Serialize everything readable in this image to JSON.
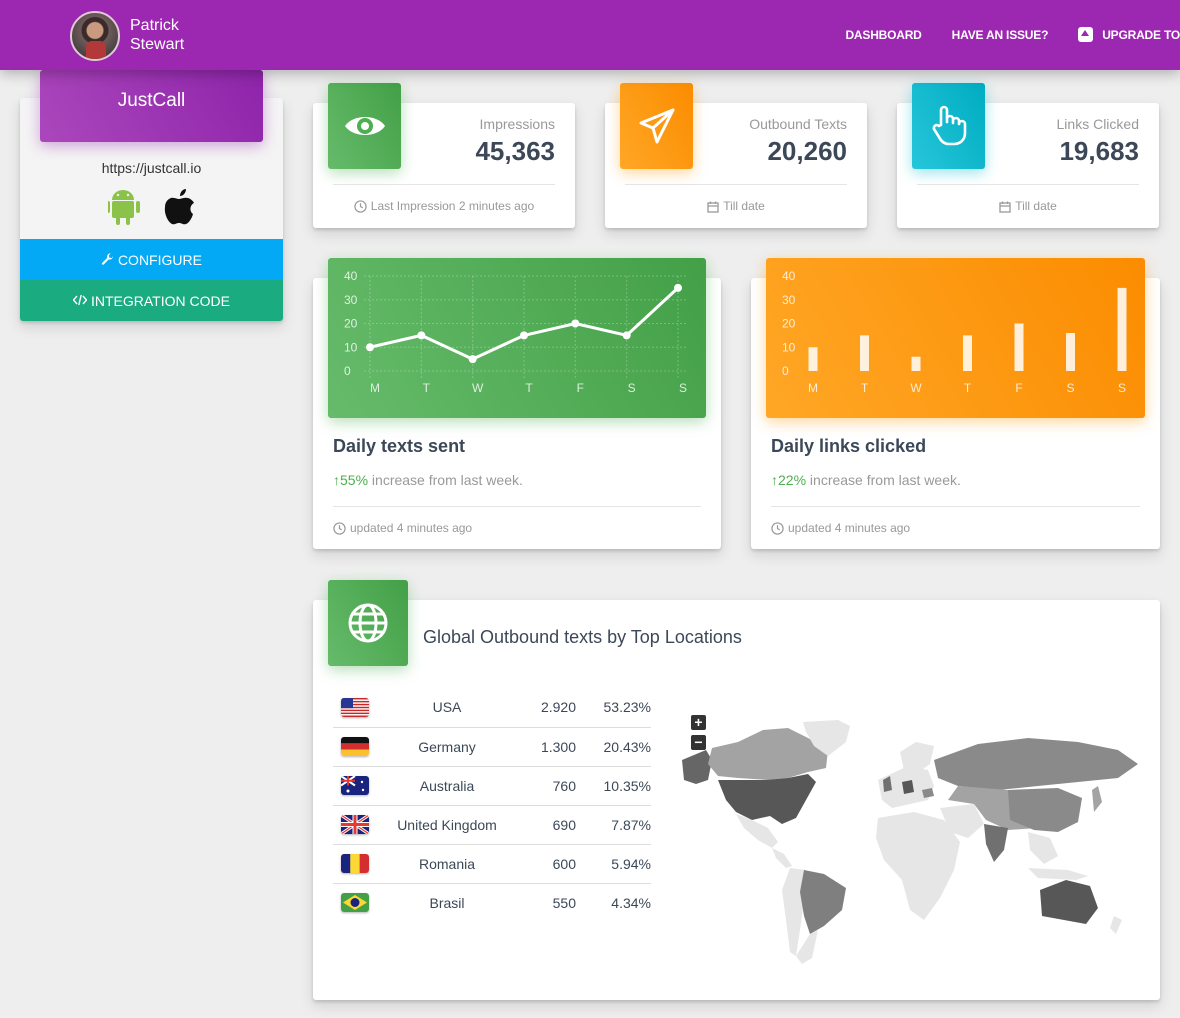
{
  "user": {
    "name": "Patrick Stewart"
  },
  "nav": {
    "dashboard": "DASHBOARD",
    "issue": "HAVE AN ISSUE?",
    "upgrade": "UPGRADE TO"
  },
  "profile": {
    "title": "JustCall",
    "url": "https://justcall.io",
    "configure_label": "CONFIGURE",
    "integration_label": "INTEGRATION CODE"
  },
  "stats": [
    {
      "label": "Impressions",
      "value": "45,363",
      "footer": "Last Impression 2 minutes ago",
      "icon": "eye-icon",
      "color": "#4caf50"
    },
    {
      "label": "Outbound Texts",
      "value": "20,260",
      "footer": "Till date",
      "icon": "paper-plane-icon",
      "color": "#ff9800"
    },
    {
      "label": "Links Clicked",
      "value": "19,683",
      "footer": "Till date",
      "icon": "pointer-hand-icon",
      "color": "#00bcd4"
    }
  ],
  "charts": [
    {
      "title": "Daily texts sent",
      "change_pct": "55%",
      "change_text": " increase from last week.",
      "updated": "updated 4 minutes ago",
      "color": "#4caf50"
    },
    {
      "title": "Daily links clicked",
      "change_pct": "22%",
      "change_text": " increase from last week.",
      "updated": "updated 4 minutes ago",
      "color": "#ff9800"
    }
  ],
  "chart_data": [
    {
      "type": "line",
      "categories": [
        "M",
        "T",
        "W",
        "T",
        "F",
        "S",
        "S"
      ],
      "values": [
        10,
        15,
        5,
        15,
        20,
        15,
        35
      ],
      "ylim": [
        0,
        40
      ],
      "yticks": [
        "0",
        "10",
        "20",
        "30",
        "40"
      ],
      "grid": true
    },
    {
      "type": "bar",
      "categories": [
        "M",
        "T",
        "W",
        "T",
        "F",
        "S",
        "S"
      ],
      "values": [
        10,
        15,
        6,
        15,
        20,
        16,
        35
      ],
      "ylim": [
        0,
        40
      ],
      "yticks": [
        "0",
        "10",
        "20",
        "30",
        "40"
      ],
      "grid": false
    }
  ],
  "global": {
    "title": "Global Outbound texts by Top Locations",
    "rows": [
      {
        "flag": "us",
        "country": "USA",
        "value": "2.920",
        "pct": "53.23%"
      },
      {
        "flag": "de",
        "country": "Germany",
        "value": "1.300",
        "pct": "20.43%"
      },
      {
        "flag": "au",
        "country": "Australia",
        "value": "760",
        "pct": "10.35%"
      },
      {
        "flag": "gb",
        "country": "United Kingdom",
        "value": "690",
        "pct": "7.87%"
      },
      {
        "flag": "ro",
        "country": "Romania",
        "value": "600",
        "pct": "5.94%"
      },
      {
        "flag": "br",
        "country": "Brasil",
        "value": "550",
        "pct": "4.34%"
      }
    ],
    "zoom_in": "+",
    "zoom_out": "−"
  }
}
